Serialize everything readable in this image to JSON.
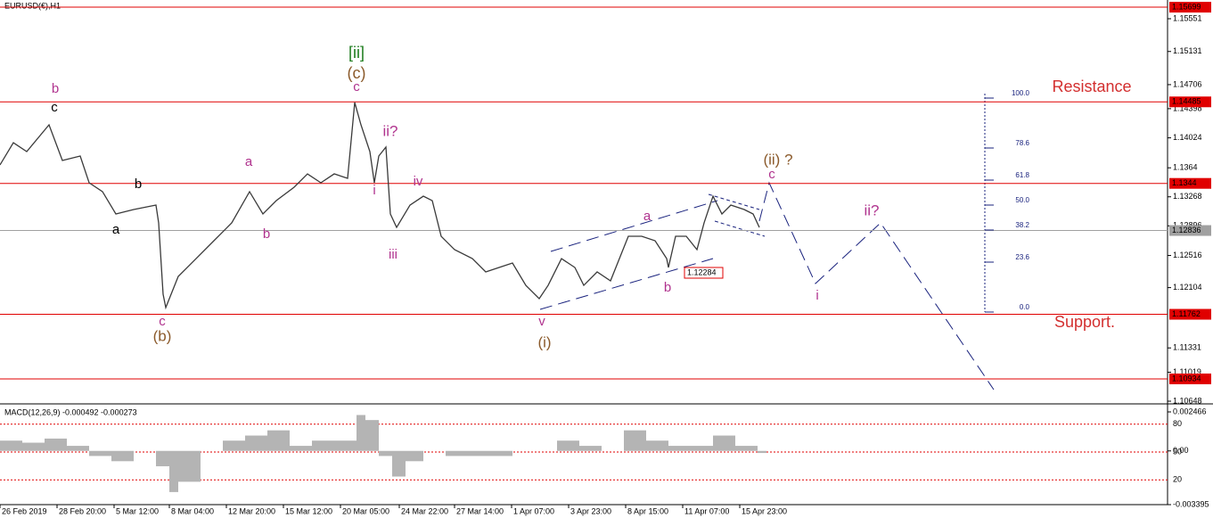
{
  "chart_data": {
    "type": "line",
    "title": "EURUSD(€),H1",
    "xlim": [
      0,
      655
    ],
    "xticks": [
      {
        "value": 0,
        "label": "26 Feb 2019"
      },
      {
        "value": 32,
        "label": "28 Feb 20:00"
      },
      {
        "value": 64,
        "label": "5 Mar 12:00"
      },
      {
        "value": 95,
        "label": "8 Mar 04:00"
      },
      {
        "value": 127,
        "label": "12 Mar 20:00"
      },
      {
        "value": 159,
        "label": "15 Mar 12:00"
      },
      {
        "value": 191,
        "label": "20 Mar 05:00"
      },
      {
        "value": 224,
        "label": "24 Mar 22:00"
      },
      {
        "value": 255,
        "label": "27 Mar 14:00"
      },
      {
        "value": 287,
        "label": "1 Apr 07:00"
      },
      {
        "value": 319,
        "label": "3 Apr 23:00"
      },
      {
        "value": 351,
        "label": "8 Apr 15:00"
      },
      {
        "value": 383,
        "label": "11 Apr 07:00"
      },
      {
        "value": 415,
        "label": "15 Apr 23:00"
      }
    ],
    "ylim": [
      1.10625,
      1.15791
    ],
    "yticks": [
      1.15551,
      1.15131,
      1.14706,
      1.14398,
      1.14024,
      1.1364,
      1.13268,
      1.12896,
      1.12516,
      1.12104,
      1.11331,
      1.11019,
      1.10648
    ],
    "series": [
      {
        "color": "#3a3a3a",
        "x": [
          0,
          7.5,
          15,
          27.5,
          35,
          45,
          50,
          57.5,
          65,
          75,
          87.5,
          89,
          91.5,
          93,
          100,
          107.5,
          120,
          130,
          140,
          147.5,
          155,
          165,
          172.5,
          180,
          187.5,
          195,
          199,
          202.5,
          207.5,
          210,
          212.5,
          216.5,
          219,
          222.5,
          230,
          237.5,
          242.5,
          247.5,
          255,
          265,
          272.5,
          280,
          287.5,
          295,
          302.5,
          307.5,
          315,
          322.5,
          327.5,
          335,
          342.5,
          347.5,
          352.5,
          360,
          367.5,
          374,
          375,
          379,
          385,
          391,
          395,
          400,
          405,
          410,
          417.5,
          422.5,
          426
        ],
        "values": [
          1.13677,
          1.13962,
          1.13848,
          1.14191,
          1.13734,
          1.13791,
          1.13448,
          1.13334,
          1.13048,
          1.13105,
          1.13162,
          1.12934,
          1.12019,
          1.11848,
          1.12248,
          1.12419,
          1.12705,
          1.12934,
          1.13334,
          1.13048,
          1.13219,
          1.13391,
          1.13562,
          1.13448,
          1.13562,
          1.13505,
          1.14477,
          1.14191,
          1.13848,
          1.13448,
          1.13791,
          1.13905,
          1.13048,
          1.12876,
          1.13162,
          1.13276,
          1.13219,
          1.12762,
          1.12591,
          1.12476,
          1.12305,
          1.12362,
          1.12419,
          1.12133,
          1.11962,
          1.12133,
          1.12476,
          1.12362,
          1.12133,
          1.12305,
          1.12191,
          1.12476,
          1.12762,
          1.12762,
          1.12705,
          1.12476,
          1.12362,
          1.12762,
          1.12762,
          1.12591,
          1.12934,
          1.13276,
          1.13048,
          1.13162,
          1.13105,
          1.13048,
          1.12876
        ]
      }
    ],
    "levels": [
      {
        "value": 1.15699,
        "color": "#e00000"
      },
      {
        "value": 1.14485,
        "color": "#e00000"
      },
      {
        "value": 1.1344,
        "color": "#e00000"
      },
      {
        "value": 1.12836,
        "color": "#a0a0a0"
      },
      {
        "value": 1.11762,
        "color": "#e00000"
      },
      {
        "value": 1.10934,
        "color": "#e00000"
      }
    ],
    "annotations": [
      {
        "text": "b",
        "color": "#b0338e"
      },
      {
        "text": "c",
        "color": "#000000"
      },
      {
        "text": "[ii]",
        "color": "#1e7d1e"
      },
      {
        "text": "(c)",
        "color": "#8b5a2b"
      },
      {
        "text": "c",
        "color": "#b0338e"
      },
      {
        "text": "ii?",
        "color": "#b0338e"
      },
      {
        "text": "i",
        "color": "#b0338e"
      },
      {
        "text": "iv",
        "color": "#b0338e"
      },
      {
        "text": "iii",
        "color": "#b0338e"
      },
      {
        "text": "a",
        "color": "#b0338e"
      },
      {
        "text": "b",
        "color": "#b0338e"
      },
      {
        "text": "b",
        "color": "#000000"
      },
      {
        "text": "a",
        "color": "#000000"
      },
      {
        "text": "c",
        "color": "#b0338e"
      },
      {
        "text": "(b)",
        "color": "#8b5a2b"
      },
      {
        "text": "v",
        "color": "#b0338e"
      },
      {
        "text": "(i)",
        "color": "#8b5a2b"
      },
      {
        "text": "a",
        "color": "#b0338e"
      },
      {
        "text": "b",
        "color": "#b0338e"
      },
      {
        "text": "(ii) ?",
        "color": "#8b5a2b"
      },
      {
        "text": "c",
        "color": "#b0338e"
      },
      {
        "text": "ii?",
        "color": "#b0338e"
      },
      {
        "text": "i",
        "color": "#b0338e"
      },
      {
        "text": "Resistance",
        "color": "#d32f2f"
      },
      {
        "text": "Support.",
        "color": "#d32f2f"
      }
    ],
    "price_label": "1.12284",
    "fib_labels": [
      "100.0",
      "78.6",
      "61.8",
      "50.0",
      "38.2",
      "23.6",
      "0.0"
    ],
    "macd": {
      "title": "MACD(12,26,9) -0.000492 -0.000273",
      "color": "#b4b4b4",
      "x": [
        0,
        12.5,
        25,
        37.5,
        50,
        62.5,
        75,
        87.5,
        95,
        100,
        112.5,
        125,
        137.5,
        150,
        162.5,
        175,
        187.5,
        200,
        205,
        212.5,
        220,
        227.5,
        237.5,
        250,
        262.5,
        275,
        287.5,
        300,
        312.5,
        325,
        337.5,
        350,
        362.5,
        375,
        387.5,
        400,
        412.5,
        425
      ],
      "values": [
        0.00065,
        0.00052,
        0.00078,
        0.00032,
        -0.00032,
        -0.00065,
        0,
        -0.00097,
        -0.0026,
        -0.00195,
        0,
        0.00065,
        0.00097,
        0.0013,
        0.00032,
        0.00065,
        0.00065,
        0.00227,
        0.00195,
        -0.00032,
        -0.00162,
        -0.00065,
        0,
        -0.00032,
        -0.00032,
        -0.00032,
        0,
        0,
        0.00065,
        0.00032,
        0,
        0.0013,
        0.00065,
        0.00032,
        0.00032,
        0.00097,
        0.00032,
        -0.00013
      ],
      "ylim": [
        -0.00362,
        0.00286
      ],
      "yticks": [
        0.002466,
        {
          "value": 0,
          "label": "0.00"
        },
        -0.003395
      ],
      "level_lim": [
        0,
        100
      ],
      "levels": [
        80,
        50,
        20
      ]
    }
  }
}
